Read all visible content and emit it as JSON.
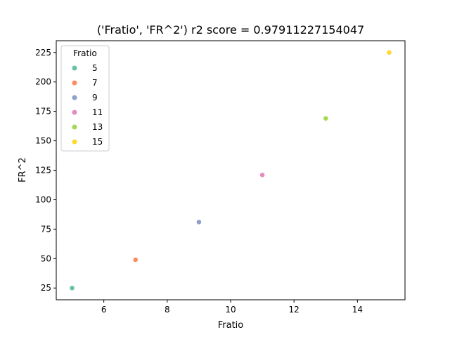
{
  "chart_data": {
    "type": "scatter",
    "title": "('Fratio', 'FR^2') r2 score = 0.97911227154047",
    "xlabel": "Fratio",
    "ylabel": "FR^2",
    "xlim": [
      4.5,
      15.5
    ],
    "ylim": [
      15,
      235
    ],
    "xticks": [
      6,
      8,
      10,
      12,
      14
    ],
    "yticks": [
      25,
      50,
      75,
      100,
      125,
      150,
      175,
      200,
      225
    ],
    "grid": false,
    "legend": {
      "title": "Fratio",
      "placement": "top-left"
    },
    "series": [
      {
        "name": "5",
        "x": 5,
        "y": 25,
        "color": "#66c2a5"
      },
      {
        "name": "7",
        "x": 7,
        "y": 49,
        "color": "#fc8d62"
      },
      {
        "name": "9",
        "x": 9,
        "y": 81,
        "color": "#8da0cb"
      },
      {
        "name": "11",
        "x": 11,
        "y": 121,
        "color": "#e78ac3"
      },
      {
        "name": "13",
        "x": 13,
        "y": 169,
        "color": "#a6d854"
      },
      {
        "name": "15",
        "x": 15,
        "y": 225,
        "color": "#ffd92f"
      }
    ]
  }
}
